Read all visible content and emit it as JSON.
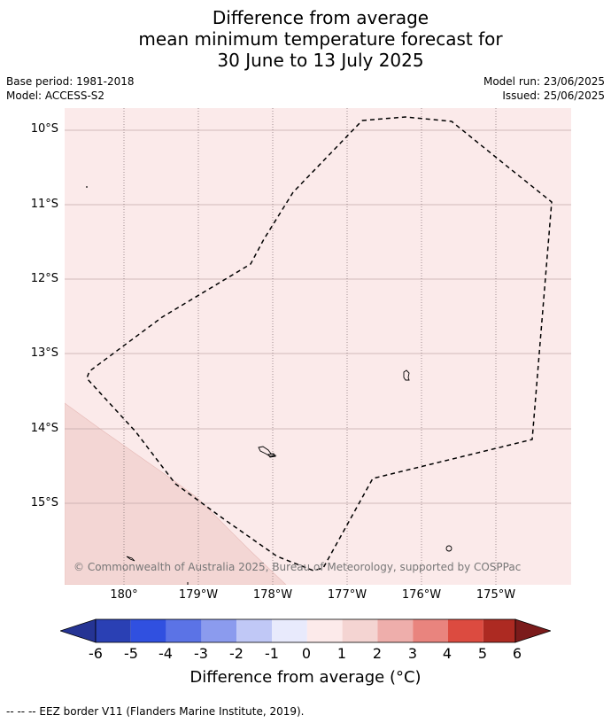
{
  "title": {
    "line1": "Difference from average",
    "line2": "mean minimum temperature forecast for",
    "line3": "30 June to 13 July 2025"
  },
  "meta": {
    "base_period": "Base period: 1981-2018",
    "model": "Model: ACCESS-S2",
    "model_run": "Model run: 23/06/2025",
    "issued": "Issued: 25/06/2025"
  },
  "map": {
    "background_color": "#fbeaea",
    "warmer_region_color": "#f3d6d4",
    "lat_labels": [
      "10°S",
      "11°S",
      "12°S",
      "13°S",
      "14°S",
      "15°S"
    ],
    "lon_labels": [
      "180°",
      "179°W",
      "178°W",
      "177°W",
      "176°W",
      "175°W"
    ],
    "copyright": "© Commonwealth of Australia 2025, Bureau of Meteorology, supported by COSPPac"
  },
  "colorbar": {
    "tick_labels": [
      "-6",
      "-5",
      "-4",
      "-3",
      "-2",
      "-1",
      "0",
      "1",
      "2",
      "3",
      "4",
      "5",
      "6"
    ],
    "colors": [
      "#253494",
      "#2a40b4",
      "#3050e0",
      "#5b73e6",
      "#8b9bee",
      "#c0c8f6",
      "#e8eafc",
      "#fceaea",
      "#f4d4d2",
      "#eeaeab",
      "#e9847e",
      "#dc4b40",
      "#ad2a22",
      "#7b1b1b"
    ],
    "label": "Difference from average (°C)"
  },
  "footnote": "-- -- -- EEZ border V11 (Flanders Marine Institute, 2019)."
}
